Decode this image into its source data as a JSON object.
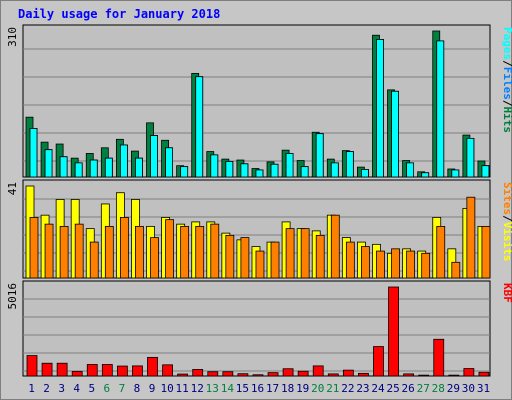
{
  "title": "Daily usage for January 2018",
  "chart_data": [
    {
      "type": "bar",
      "panel": "top",
      "ymax_label": "310",
      "right_label": [
        "Pages",
        "/",
        "Files",
        "/",
        "Hits"
      ],
      "right_label_colors": [
        "#00ffff",
        "#000000",
        "#0080ff",
        "#000000",
        "#008040"
      ],
      "series": [
        {
          "name": "Hits",
          "color": "#008040",
          "values": [
            127,
            74,
            70,
            40,
            50,
            62,
            80,
            55,
            115,
            78,
            24,
            220,
            54,
            38,
            36,
            18,
            32,
            57,
            35,
            95,
            38,
            56,
            21,
            301,
            185,
            35,
            11,
            310,
            17,
            89,
            34
          ]
        },
        {
          "name": "Files",
          "color": "#0080ff",
          "values": [
            103,
            58,
            43,
            30,
            36,
            40,
            68,
            40,
            88,
            62,
            22,
            213,
            47,
            33,
            28,
            15,
            27,
            50,
            22,
            92,
            30,
            54,
            16,
            292,
            182,
            30,
            9,
            289,
            15,
            82,
            24
          ]
        },
        {
          "name": "Pages",
          "color": "#00ffff",
          "values": [
            103,
            58,
            43,
            30,
            36,
            40,
            68,
            40,
            88,
            62,
            22,
            213,
            47,
            33,
            28,
            15,
            27,
            50,
            22,
            92,
            30,
            54,
            16,
            292,
            182,
            30,
            9,
            289,
            15,
            82,
            24
          ]
        }
      ]
    },
    {
      "type": "bar",
      "panel": "middle",
      "ymax_label": "41",
      "right_label": [
        "Sites",
        "/",
        "Visits"
      ],
      "right_label_colors": [
        "#ff8000",
        "#000000",
        "#ffff00"
      ],
      "series": [
        {
          "name": "Visits",
          "color": "#ffff00",
          "values": [
            41,
            28,
            35,
            35,
            22,
            33,
            38,
            35,
            23,
            27,
            24,
            25,
            25,
            20,
            17,
            14,
            16,
            25,
            22,
            21,
            28,
            18,
            16,
            15,
            11,
            13,
            12,
            27,
            13,
            31,
            23
          ]
        },
        {
          "name": "Sites",
          "color": "#ff8000",
          "values": [
            27,
            24,
            23,
            24,
            16,
            23,
            27,
            23,
            18,
            26,
            23,
            23,
            24,
            19,
            18,
            12,
            16,
            22,
            22,
            19,
            28,
            16,
            14,
            12,
            13,
            12,
            11,
            23,
            7,
            36,
            23
          ]
        }
      ]
    },
    {
      "type": "bar",
      "panel": "bottom",
      "ymax_label": "5016",
      "right_label": [
        "KB",
        "F"
      ],
      "right_label_colors": [
        "#ff0000",
        "#ff0000"
      ],
      "series": [
        {
          "name": "KB F",
          "color": "#ff0000",
          "values": [
            1150,
            720,
            720,
            260,
            650,
            650,
            560,
            570,
            1050,
            630,
            110,
            370,
            240,
            240,
            130,
            70,
            190,
            410,
            270,
            570,
            120,
            330,
            150,
            1660,
            5016,
            120,
            50,
            2070,
            50,
            420,
            210
          ]
        }
      ]
    }
  ],
  "x_labels": [
    "1",
    "2",
    "3",
    "4",
    "5",
    "6",
    "7",
    "8",
    "9",
    "10",
    "11",
    "12",
    "13",
    "14",
    "15",
    "16",
    "17",
    "18",
    "19",
    "20",
    "21",
    "22",
    "23",
    "24",
    "25",
    "26",
    "27",
    "28",
    "29",
    "30",
    "31"
  ],
  "weekend_days": [
    "6",
    "7",
    "13",
    "14",
    "20",
    "21",
    "27",
    "28"
  ],
  "colors": {
    "weekday_label": "#000080",
    "weekend_label": "#008040",
    "plot_bg": "#c0c0c0",
    "grid": "#808080"
  }
}
